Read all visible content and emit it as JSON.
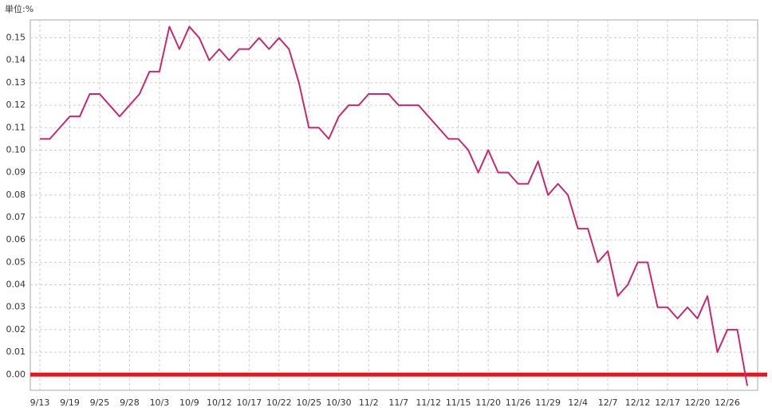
{
  "chart_data": {
    "type": "line",
    "y_label": "単位:%",
    "categories": [
      "9/13",
      null,
      null,
      "9/19",
      null,
      null,
      "9/25",
      null,
      null,
      "9/28",
      null,
      null,
      "10/3",
      null,
      null,
      "10/9",
      null,
      null,
      "10/12",
      null,
      null,
      "10/17",
      null,
      null,
      "10/22",
      null,
      null,
      "10/25",
      null,
      null,
      "10/30",
      null,
      null,
      "11/2",
      null,
      null,
      "11/7",
      null,
      null,
      "11/12",
      null,
      null,
      "11/15",
      null,
      null,
      "11/20",
      null,
      null,
      "11/26",
      null,
      null,
      "11/29",
      null,
      null,
      "12/4",
      null,
      null,
      "12/7",
      null,
      null,
      "12/12",
      null,
      null,
      "12/17",
      null,
      null,
      "12/20",
      null,
      null,
      "12/26",
      null,
      null
    ],
    "values": [
      0.105,
      0.105,
      0.11,
      0.115,
      0.115,
      0.125,
      0.125,
      0.12,
      0.115,
      0.12,
      0.125,
      0.135,
      0.135,
      0.155,
      0.145,
      0.155,
      0.15,
      0.14,
      0.145,
      0.14,
      0.145,
      0.145,
      0.15,
      0.145,
      0.15,
      0.145,
      0.13,
      0.11,
      0.11,
      0.105,
      0.115,
      0.12,
      0.12,
      0.125,
      0.125,
      0.125,
      0.12,
      0.12,
      0.12,
      0.115,
      0.11,
      0.105,
      0.105,
      0.1,
      0.09,
      0.1,
      0.09,
      0.09,
      0.085,
      0.085,
      0.095,
      0.08,
      0.085,
      0.08,
      0.065,
      0.065,
      0.05,
      0.055,
      0.035,
      0.04,
      0.05,
      0.05,
      0.03,
      0.03,
      0.025,
      0.03,
      0.025,
      0.035,
      0.01,
      0.02,
      0.02,
      -0.005
    ],
    "color": "#c42a72",
    "reference_line": {
      "value": 0,
      "color": "#dd1a22"
    },
    "ylim": [
      -0.007,
      0.158
    ],
    "yticks": [
      {
        "value": 0,
        "label": "0.00"
      },
      {
        "value": 0.01,
        "label": "0.01"
      },
      {
        "value": 0.02,
        "label": "0.02"
      },
      {
        "value": 0.03,
        "label": "0.03"
      },
      {
        "value": 0.04,
        "label": "0.04"
      },
      {
        "value": 0.05,
        "label": "0.05"
      },
      {
        "value": 0.06,
        "label": "0.06"
      },
      {
        "value": 0.07,
        "label": "0.07"
      },
      {
        "value": 0.08,
        "label": "0.08"
      },
      {
        "value": 0.09,
        "label": "0.09"
      },
      {
        "value": 0.1,
        "label": "0.10"
      },
      {
        "value": 0.11,
        "label": "0.11"
      },
      {
        "value": 0.12,
        "label": "0.12"
      },
      {
        "value": 0.13,
        "label": "0.13"
      },
      {
        "value": 0.14,
        "label": "0.14"
      },
      {
        "value": 0.15,
        "label": "0.15"
      }
    ],
    "grid": true
  }
}
